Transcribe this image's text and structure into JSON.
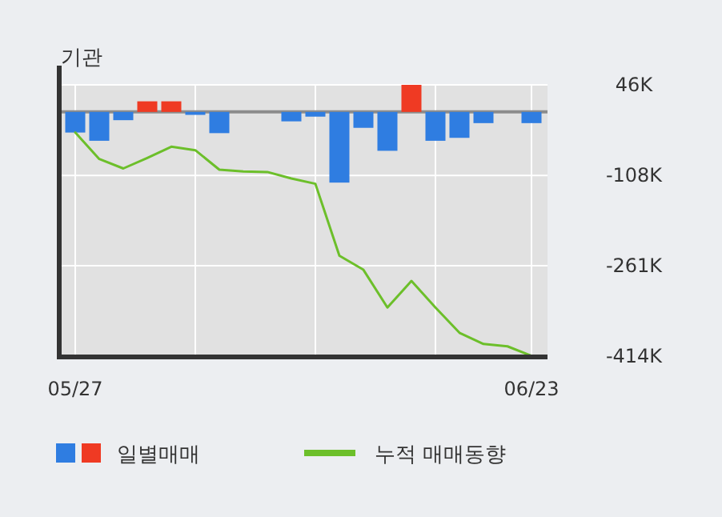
{
  "chart_data": {
    "type": "bar",
    "title": "기관",
    "categories": [
      "05/27",
      null,
      null,
      null,
      null,
      null,
      null,
      null,
      null,
      null,
      null,
      null,
      null,
      null,
      null,
      null,
      null,
      null,
      null,
      "06/23"
    ],
    "series": [
      {
        "name": "일별매매",
        "values": [
          -35,
          -49,
          -14,
          18,
          18,
          -5,
          -36,
          0,
          0,
          -16,
          -8,
          -120,
          -27,
          -66,
          46,
          -49,
          -44,
          -19,
          0,
          -19
        ],
        "colors": [
          "#2f7de1",
          "#2f7de1",
          "#2f7de1",
          "#ef3a23",
          "#ef3a23",
          "#2f7de1",
          "#2f7de1",
          "#2f7de1",
          "#2f7de1",
          "#2f7de1",
          "#2f7de1",
          "#2f7de1",
          "#2f7de1",
          "#2f7de1",
          "#ef3a23",
          "#2f7de1",
          "#2f7de1",
          "#2f7de1",
          "#2f7de1",
          "#2f7de1"
        ]
      },
      {
        "name": "누적 매매동향",
        "type": "line",
        "color": "#6cbf2a",
        "values": [
          -35,
          -80,
          -96,
          -78,
          -59,
          -65,
          -98,
          -101,
          -102,
          -113,
          -122,
          -244,
          -268,
          -332,
          -287,
          -332,
          -375,
          -394,
          -398,
          -414
        ]
      }
    ],
    "ylim": [
      -416,
      46
    ],
    "yticks": [
      {
        "value": 46,
        "label": "46K"
      },
      {
        "value": -108,
        "label": "-108K"
      },
      {
        "value": -261,
        "label": "-261K"
      },
      {
        "value": -414,
        "label": "-414K"
      }
    ],
    "ref_lines": [
      {
        "axis": "y",
        "value": 0,
        "color": "#8c8c8c"
      }
    ],
    "grid": true,
    "legend": "bottom"
  }
}
